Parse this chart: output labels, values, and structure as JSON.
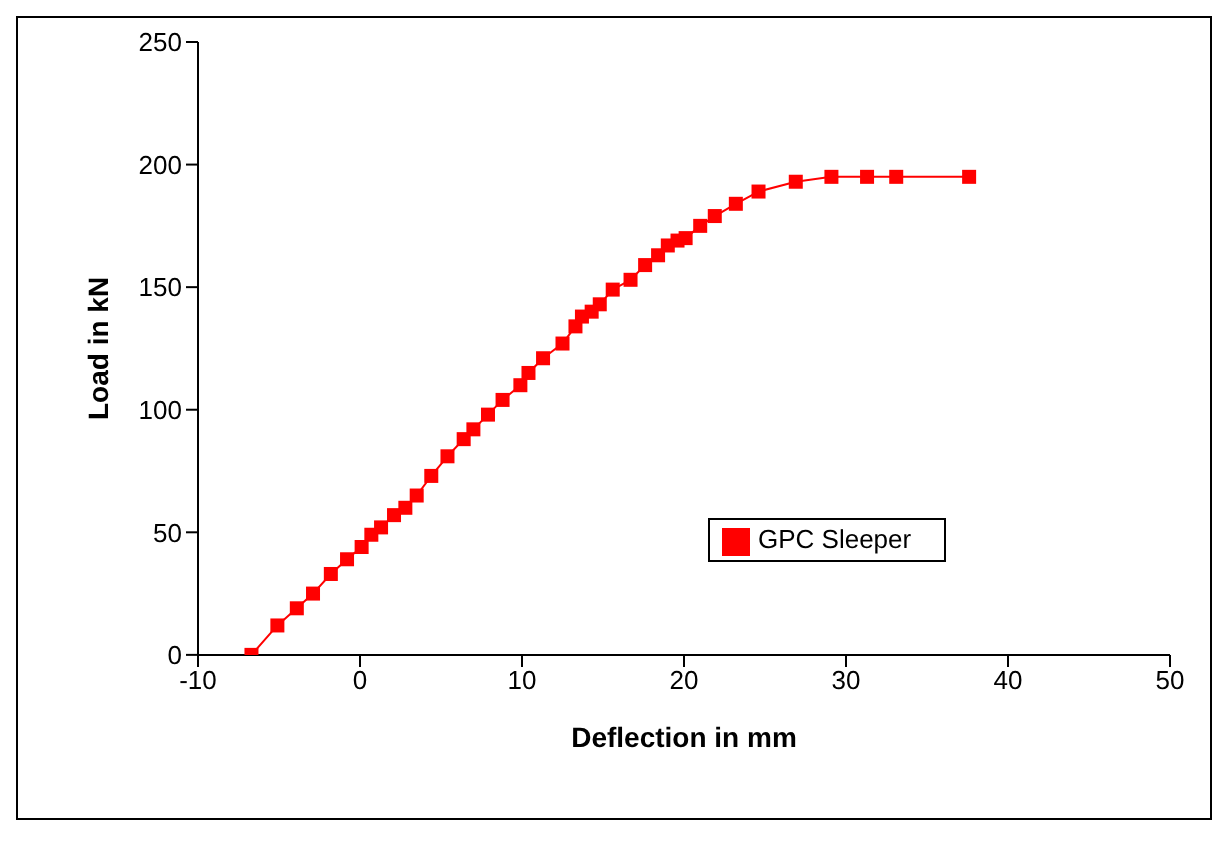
{
  "chart_data": {
    "type": "line",
    "xlabel": "Deflection in mm",
    "ylabel": "Load in kN",
    "xlim": [
      -10,
      50
    ],
    "xticks": [
      -10,
      0,
      10,
      20,
      30,
      40,
      50
    ],
    "ylim": [
      0,
      250
    ],
    "yticks": [
      0,
      50,
      100,
      150,
      200,
      250
    ],
    "grid": false,
    "legend": "right",
    "marker": "square",
    "line_style": "solid",
    "series": [
      {
        "name": "GPC Sleeper",
        "color": "#ff0000",
        "x": [
          -6.7,
          -5.1,
          -3.9,
          -2.9,
          -1.8,
          -0.8,
          0.1,
          0.7,
          1.3,
          2.1,
          2.8,
          3.5,
          4.4,
          5.4,
          6.4,
          7.0,
          7.9,
          8.8,
          9.9,
          10.4,
          11.3,
          12.5,
          13.3,
          13.7,
          14.3,
          14.8,
          15.6,
          16.7,
          17.6,
          18.4,
          19.0,
          19.6,
          20.1,
          21.0,
          21.9,
          23.2,
          24.6,
          26.9,
          29.1,
          31.3,
          33.1,
          37.6
        ],
        "values": [
          0,
          12,
          19,
          25,
          33,
          39,
          44,
          49,
          52,
          57,
          60,
          65,
          73,
          81,
          88,
          92,
          98,
          104,
          110,
          115,
          121,
          127,
          134,
          138,
          140,
          143,
          149,
          153,
          159,
          163,
          167,
          169,
          170,
          175,
          179,
          184,
          189,
          193,
          195,
          195,
          195,
          195
        ]
      }
    ]
  }
}
